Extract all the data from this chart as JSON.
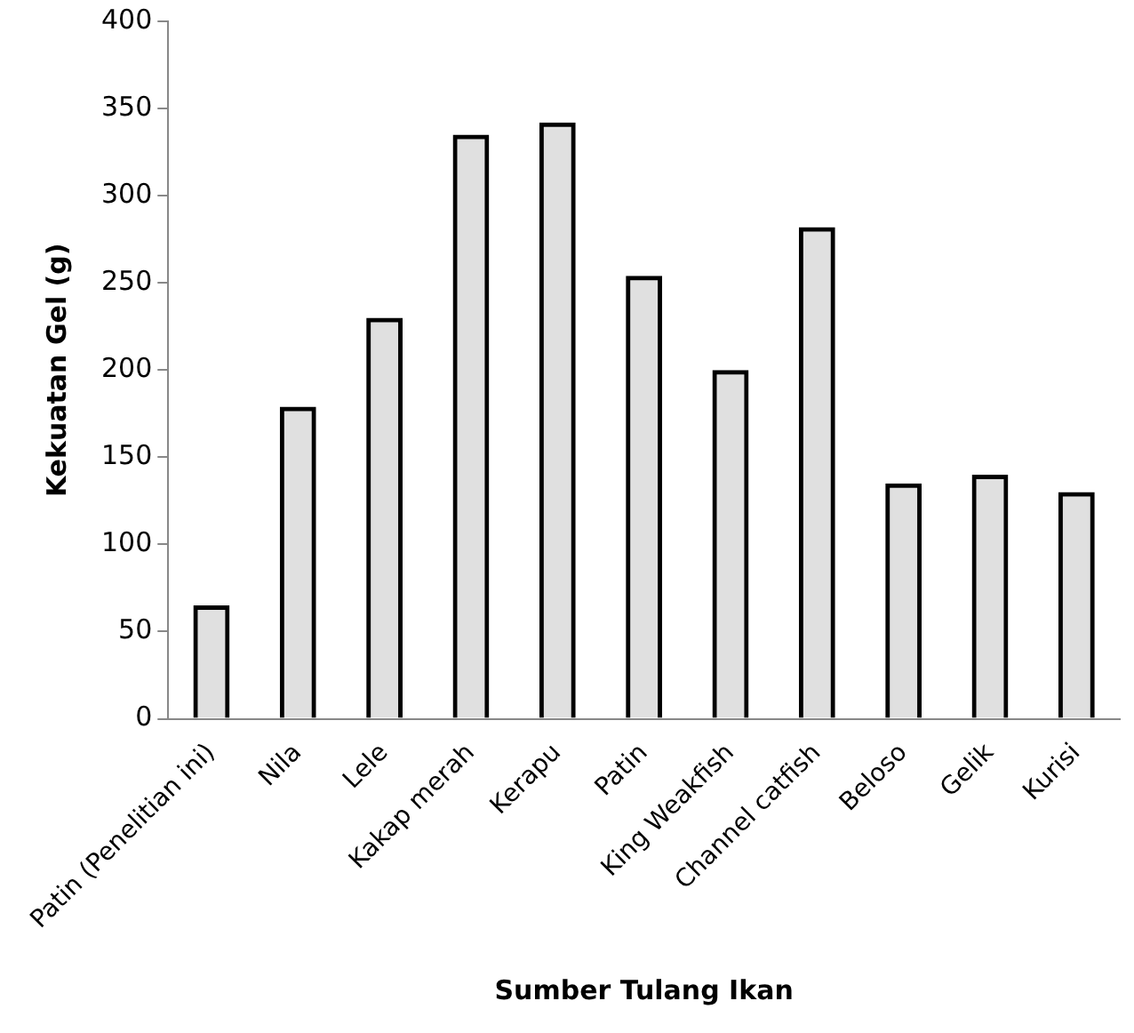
{
  "chart_data": {
    "type": "bar",
    "xlabel": "Sumber Tulang Ikan",
    "ylabel": "Kekuatan Gel (g)",
    "categories": [
      "Patin (Penelitian ini)",
      "Nila",
      "Lele",
      "Kakap merah",
      "Kerapu",
      "Patin",
      "King Weakfish",
      "Channel catfish",
      "Beloso",
      "Gelik",
      "Kurisi"
    ],
    "values": [
      65,
      179,
      230,
      335,
      342,
      254,
      200,
      282,
      135,
      140,
      130
    ],
    "color": "#000000",
    "ylim": [
      0,
      400
    ],
    "yticks": [
      0,
      50,
      100,
      150,
      200,
      250,
      300,
      350,
      400
    ],
    "grid": false,
    "legend": false
  }
}
